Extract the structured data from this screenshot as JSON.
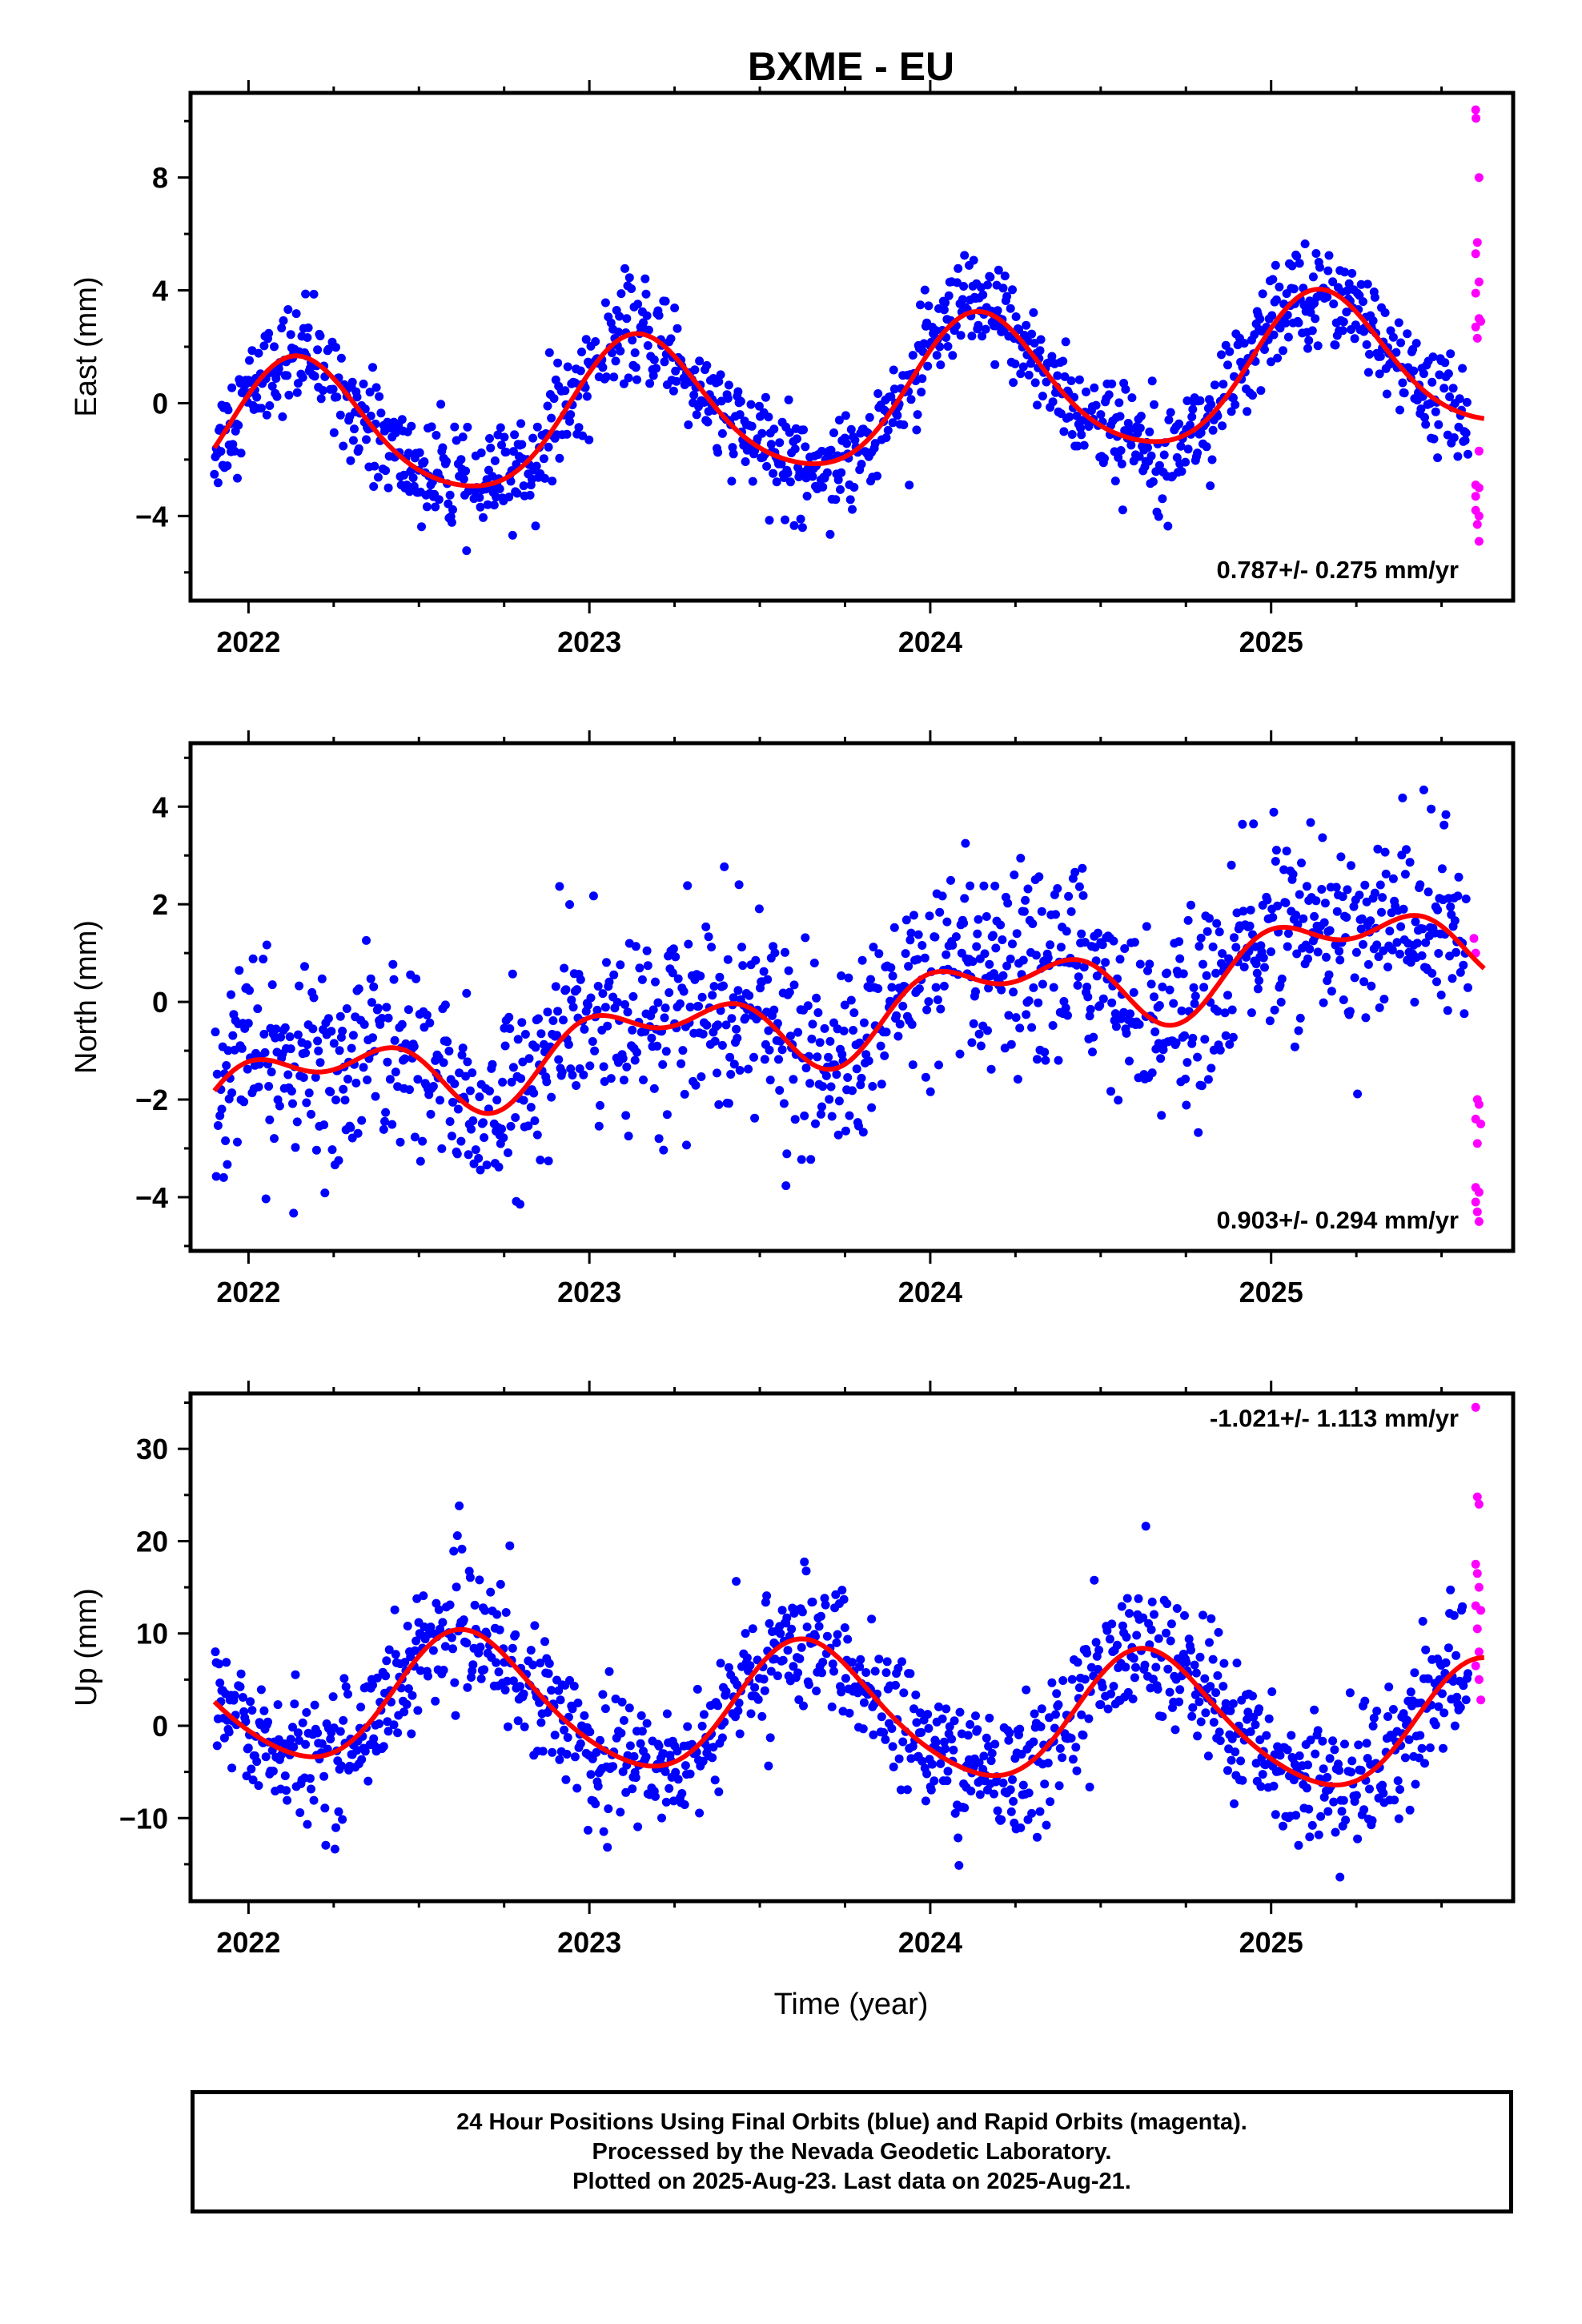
{
  "title": "BXME - EU",
  "colors": {
    "final": "#0000ff",
    "rapid": "#ff00ff",
    "model": "#ff0000",
    "frame": "#000000"
  },
  "xlabel": "Time (year)",
  "footer": {
    "line1": "24 Hour Positions Using Final Orbits (blue) and Rapid Orbits (magenta).",
    "line2": "Processed by the Nevada Geodetic Laboratory.",
    "line3": "Plotted on 2025-Aug-23. Last data on 2025-Aug-21."
  },
  "chart_data": [
    {
      "type": "scatter",
      "component": "East",
      "ylabel": "East (mm)",
      "xlim": [
        2021.83,
        2025.71
      ],
      "ylim": [
        -7,
        11
      ],
      "yticks": [
        -4,
        0,
        4,
        8
      ],
      "xticks": [
        2022,
        2023,
        2024,
        2025
      ],
      "grid": false,
      "rate_label": "0.787+/- 0.275 mm/yr",
      "model": {
        "offset": 0.15,
        "rate": 0.787,
        "amp_annual": 2.5,
        "phase_annual": 0.66,
        "amp_semi": 0.35,
        "phase_semi": 0.1,
        "t0": 2023.8
      },
      "final_orbits": {
        "start": 2021.9,
        "end": 2025.58,
        "step": 0.0027,
        "noise_mm": 0.9
      },
      "rapid_orbits": [
        [
          2025.6,
          10.4
        ],
        [
          2025.601,
          10.1
        ],
        [
          2025.61,
          8.0
        ],
        [
          2025.605,
          5.7
        ],
        [
          2025.6,
          5.3
        ],
        [
          2025.61,
          4.3
        ],
        [
          2025.6,
          3.9
        ],
        [
          2025.61,
          3.0
        ],
        [
          2025.615,
          2.9
        ],
        [
          2025.6,
          2.7
        ],
        [
          2025.605,
          2.3
        ],
        [
          2025.61,
          -1.7
        ],
        [
          2025.6,
          -2.9
        ],
        [
          2025.61,
          -3.0
        ],
        [
          2025.6,
          -3.3
        ],
        [
          2025.6,
          -3.8
        ],
        [
          2025.61,
          -4.0
        ],
        [
          2025.605,
          -4.3
        ],
        [
          2025.61,
          -4.9
        ]
      ]
    },
    {
      "type": "scatter",
      "component": "North",
      "ylabel": "North (mm)",
      "xlim": [
        2021.83,
        2025.71
      ],
      "ylim": [
        -5.1,
        5.3
      ],
      "yticks": [
        -4,
        -2,
        0,
        2,
        4
      ],
      "xticks": [
        2022,
        2023,
        2024,
        2025
      ],
      "grid": false,
      "rate_label": "0.903+/- 0.294 mm/yr",
      "model": {
        "offset": -0.2,
        "rate": 0.903,
        "amp_annual": 0.65,
        "phase_annual": 0.3,
        "amp_semi": 0.45,
        "phase_semi": 2.0,
        "t0": 2023.8
      },
      "final_orbits": {
        "start": 2021.9,
        "end": 2025.58,
        "step": 0.0027,
        "noise_mm": 0.95
      },
      "rapid_orbits": [
        [
          2025.595,
          1.3
        ],
        [
          2025.6,
          1.0
        ],
        [
          2025.605,
          -2.0
        ],
        [
          2025.61,
          -2.1
        ],
        [
          2025.6,
          -2.4
        ],
        [
          2025.615,
          -2.5
        ],
        [
          2025.605,
          -2.9
        ],
        [
          2025.6,
          -3.8
        ],
        [
          2025.61,
          -3.9
        ],
        [
          2025.6,
          -4.1
        ],
        [
          2025.605,
          -4.3
        ],
        [
          2025.61,
          -4.5
        ]
      ]
    },
    {
      "type": "scatter",
      "component": "Up",
      "ylabel": "Up (mm)",
      "xlim": [
        2021.83,
        2025.71
      ],
      "ylim": [
        -19,
        36
      ],
      "yticks": [
        -10,
        0,
        10,
        20,
        30
      ],
      "xticks": [
        2022,
        2023,
        2024,
        2025
      ],
      "grid": false,
      "rate_label": "-1.021+/- 1.113 mm/yr",
      "model": {
        "offset": 1.5,
        "rate": -1.021,
        "amp_annual": 7.0,
        "phase_annual": 3.8,
        "amp_semi": 0.9,
        "phase_semi": 0.5,
        "t0": 2023.8
      },
      "final_orbits": {
        "start": 2021.9,
        "end": 2025.58,
        "step": 0.0027,
        "noise_mm": 3.5
      },
      "rapid_orbits": [
        [
          2025.6,
          34.5
        ],
        [
          2025.605,
          24.8
        ],
        [
          2025.61,
          24.0
        ],
        [
          2025.6,
          17.5
        ],
        [
          2025.605,
          16.5
        ],
        [
          2025.61,
          15.0
        ],
        [
          2025.6,
          13.0
        ],
        [
          2025.615,
          12.5
        ],
        [
          2025.605,
          10.5
        ],
        [
          2025.61,
          8.0
        ],
        [
          2025.6,
          6.5
        ],
        [
          2025.61,
          5.0
        ],
        [
          2025.615,
          2.8
        ]
      ]
    }
  ]
}
